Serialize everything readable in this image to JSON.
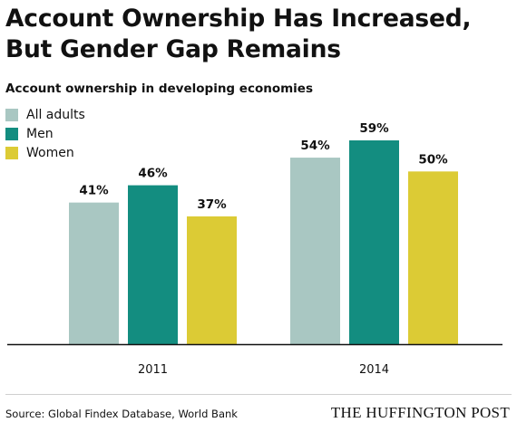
{
  "title_line1": "Account Ownership Has Increased,",
  "title_line2": "But Gender Gap Remains",
  "source": "Source: Global Findex Database, World Bank",
  "brand": "THE HUFFINGTON POST",
  "chart_data": {
    "type": "bar",
    "subtitle": "Account ownership in developing economies",
    "categories": [
      "2011",
      "2014"
    ],
    "series": [
      {
        "name": "All adults",
        "color": "#a9c7c2",
        "values": [
          41,
          54
        ],
        "labels": [
          "41%",
          "54%"
        ]
      },
      {
        "name": "Men",
        "color": "#138d80",
        "values": [
          46,
          59
        ],
        "labels": [
          "46%",
          "59%"
        ]
      },
      {
        "name": "Women",
        "color": "#dccb35",
        "values": [
          37,
          50
        ],
        "labels": [
          "37%",
          "50%"
        ]
      }
    ],
    "ylim": [
      0,
      60
    ],
    "grid": false,
    "legend_position": "top-left"
  }
}
